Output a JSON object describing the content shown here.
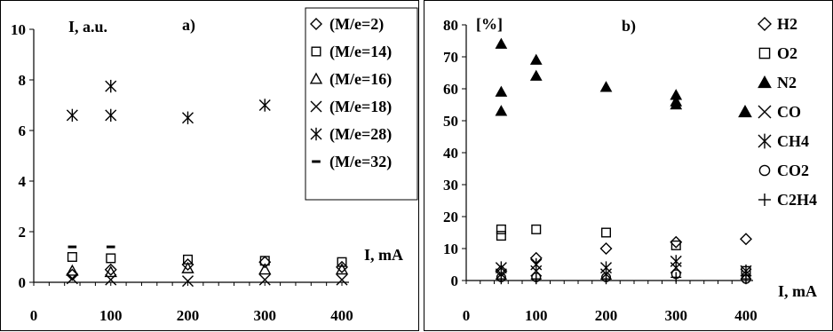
{
  "chart_data": [
    {
      "type": "scatter",
      "panel_label": "a)",
      "ylabel": "I, a.u.",
      "xlabel": "I, mA",
      "xlim": [
        0,
        400
      ],
      "ylim": [
        0,
        10
      ],
      "x_ticks": [
        "0",
        "100",
        "200",
        "300",
        "400"
      ],
      "y_ticks": [
        "0",
        "2",
        "4",
        "6",
        "8",
        "10"
      ],
      "legend_position": "right",
      "series": [
        {
          "name": "(M/e=2)",
          "marker": "diamond",
          "points": [
            [
              50,
              0.3
            ],
            [
              100,
              0.5
            ],
            [
              200,
              0.7
            ],
            [
              300,
              0.8
            ],
            [
              400,
              0.6
            ]
          ]
        },
        {
          "name": "(M/e=14)",
          "marker": "square",
          "points": [
            [
              50,
              1.0
            ],
            [
              100,
              0.95
            ],
            [
              200,
              0.9
            ],
            [
              300,
              0.85
            ],
            [
              400,
              0.8
            ]
          ]
        },
        {
          "name": "(M/e=16)",
          "marker": "triangle",
          "points": [
            [
              50,
              0.45
            ],
            [
              100,
              0.4
            ],
            [
              200,
              0.55
            ],
            [
              300,
              0.5
            ],
            [
              400,
              0.5
            ]
          ]
        },
        {
          "name": "(M/e=18)",
          "marker": "x",
          "points": [
            [
              50,
              0.15
            ],
            [
              100,
              0.1
            ],
            [
              200,
              0.05
            ],
            [
              300,
              0.1
            ],
            [
              400,
              0.1
            ]
          ]
        },
        {
          "name": "(M/e=28)",
          "marker": "asterisk",
          "points": [
            [
              50,
              6.6
            ],
            [
              100,
              6.6
            ],
            [
              100,
              7.75
            ],
            [
              200,
              6.5
            ],
            [
              300,
              7.0
            ]
          ]
        },
        {
          "name": "(M/e=32)",
          "marker": "dash",
          "points": [
            [
              50,
              1.4
            ],
            [
              100,
              1.4
            ]
          ]
        }
      ]
    },
    {
      "type": "scatter",
      "panel_label": "b)",
      "ylabel": "[%]",
      "xlabel": "I, mA",
      "xlim": [
        0,
        400
      ],
      "ylim": [
        0,
        80
      ],
      "x_ticks": [
        "0",
        "100",
        "200",
        "300",
        "400"
      ],
      "y_ticks": [
        "0",
        "10",
        "20",
        "30",
        "40",
        "50",
        "60",
        "70",
        "80"
      ],
      "legend_position": "right",
      "series": [
        {
          "name": "H2",
          "marker": "diamond",
          "points": [
            [
              50,
              3
            ],
            [
              100,
              7
            ],
            [
              200,
              10
            ],
            [
              300,
              12
            ],
            [
              400,
              13
            ]
          ]
        },
        {
          "name": "O2",
          "marker": "square",
          "points": [
            [
              50,
              16
            ],
            [
              50,
              14
            ],
            [
              100,
              16
            ],
            [
              200,
              15
            ],
            [
              300,
              11
            ],
            [
              400,
              3
            ]
          ]
        },
        {
          "name": "N2",
          "marker": "triangle-filled",
          "points": [
            [
              50,
              74
            ],
            [
              50,
              59
            ],
            [
              50,
              53
            ],
            [
              100,
              69
            ],
            [
              100,
              64
            ],
            [
              200,
              60.5
            ],
            [
              300,
              58
            ],
            [
              300,
              56
            ],
            [
              300,
              55
            ]
          ]
        },
        {
          "name": "CO",
          "marker": "x",
          "points": [
            [
              50,
              2
            ],
            [
              100,
              3
            ],
            [
              200,
              2
            ],
            [
              300,
              4
            ],
            [
              400,
              2
            ]
          ]
        },
        {
          "name": "CH4",
          "marker": "asterisk",
          "points": [
            [
              50,
              4
            ],
            [
              100,
              5
            ],
            [
              200,
              4
            ],
            [
              300,
              6
            ],
            [
              400,
              3
            ]
          ]
        },
        {
          "name": "CO2",
          "marker": "circle",
          "points": [
            [
              50,
              1
            ],
            [
              100,
              1
            ],
            [
              200,
              1
            ],
            [
              300,
              2
            ],
            [
              400,
              0.5
            ]
          ]
        },
        {
          "name": "C2H4",
          "marker": "plus",
          "points": [
            [
              50,
              0.5
            ],
            [
              100,
              0.5
            ],
            [
              200,
              0.5
            ],
            [
              300,
              1
            ],
            [
              400,
              0.5
            ]
          ]
        }
      ],
      "legend_extra_markers": [
        "triangle-filled"
      ]
    }
  ]
}
